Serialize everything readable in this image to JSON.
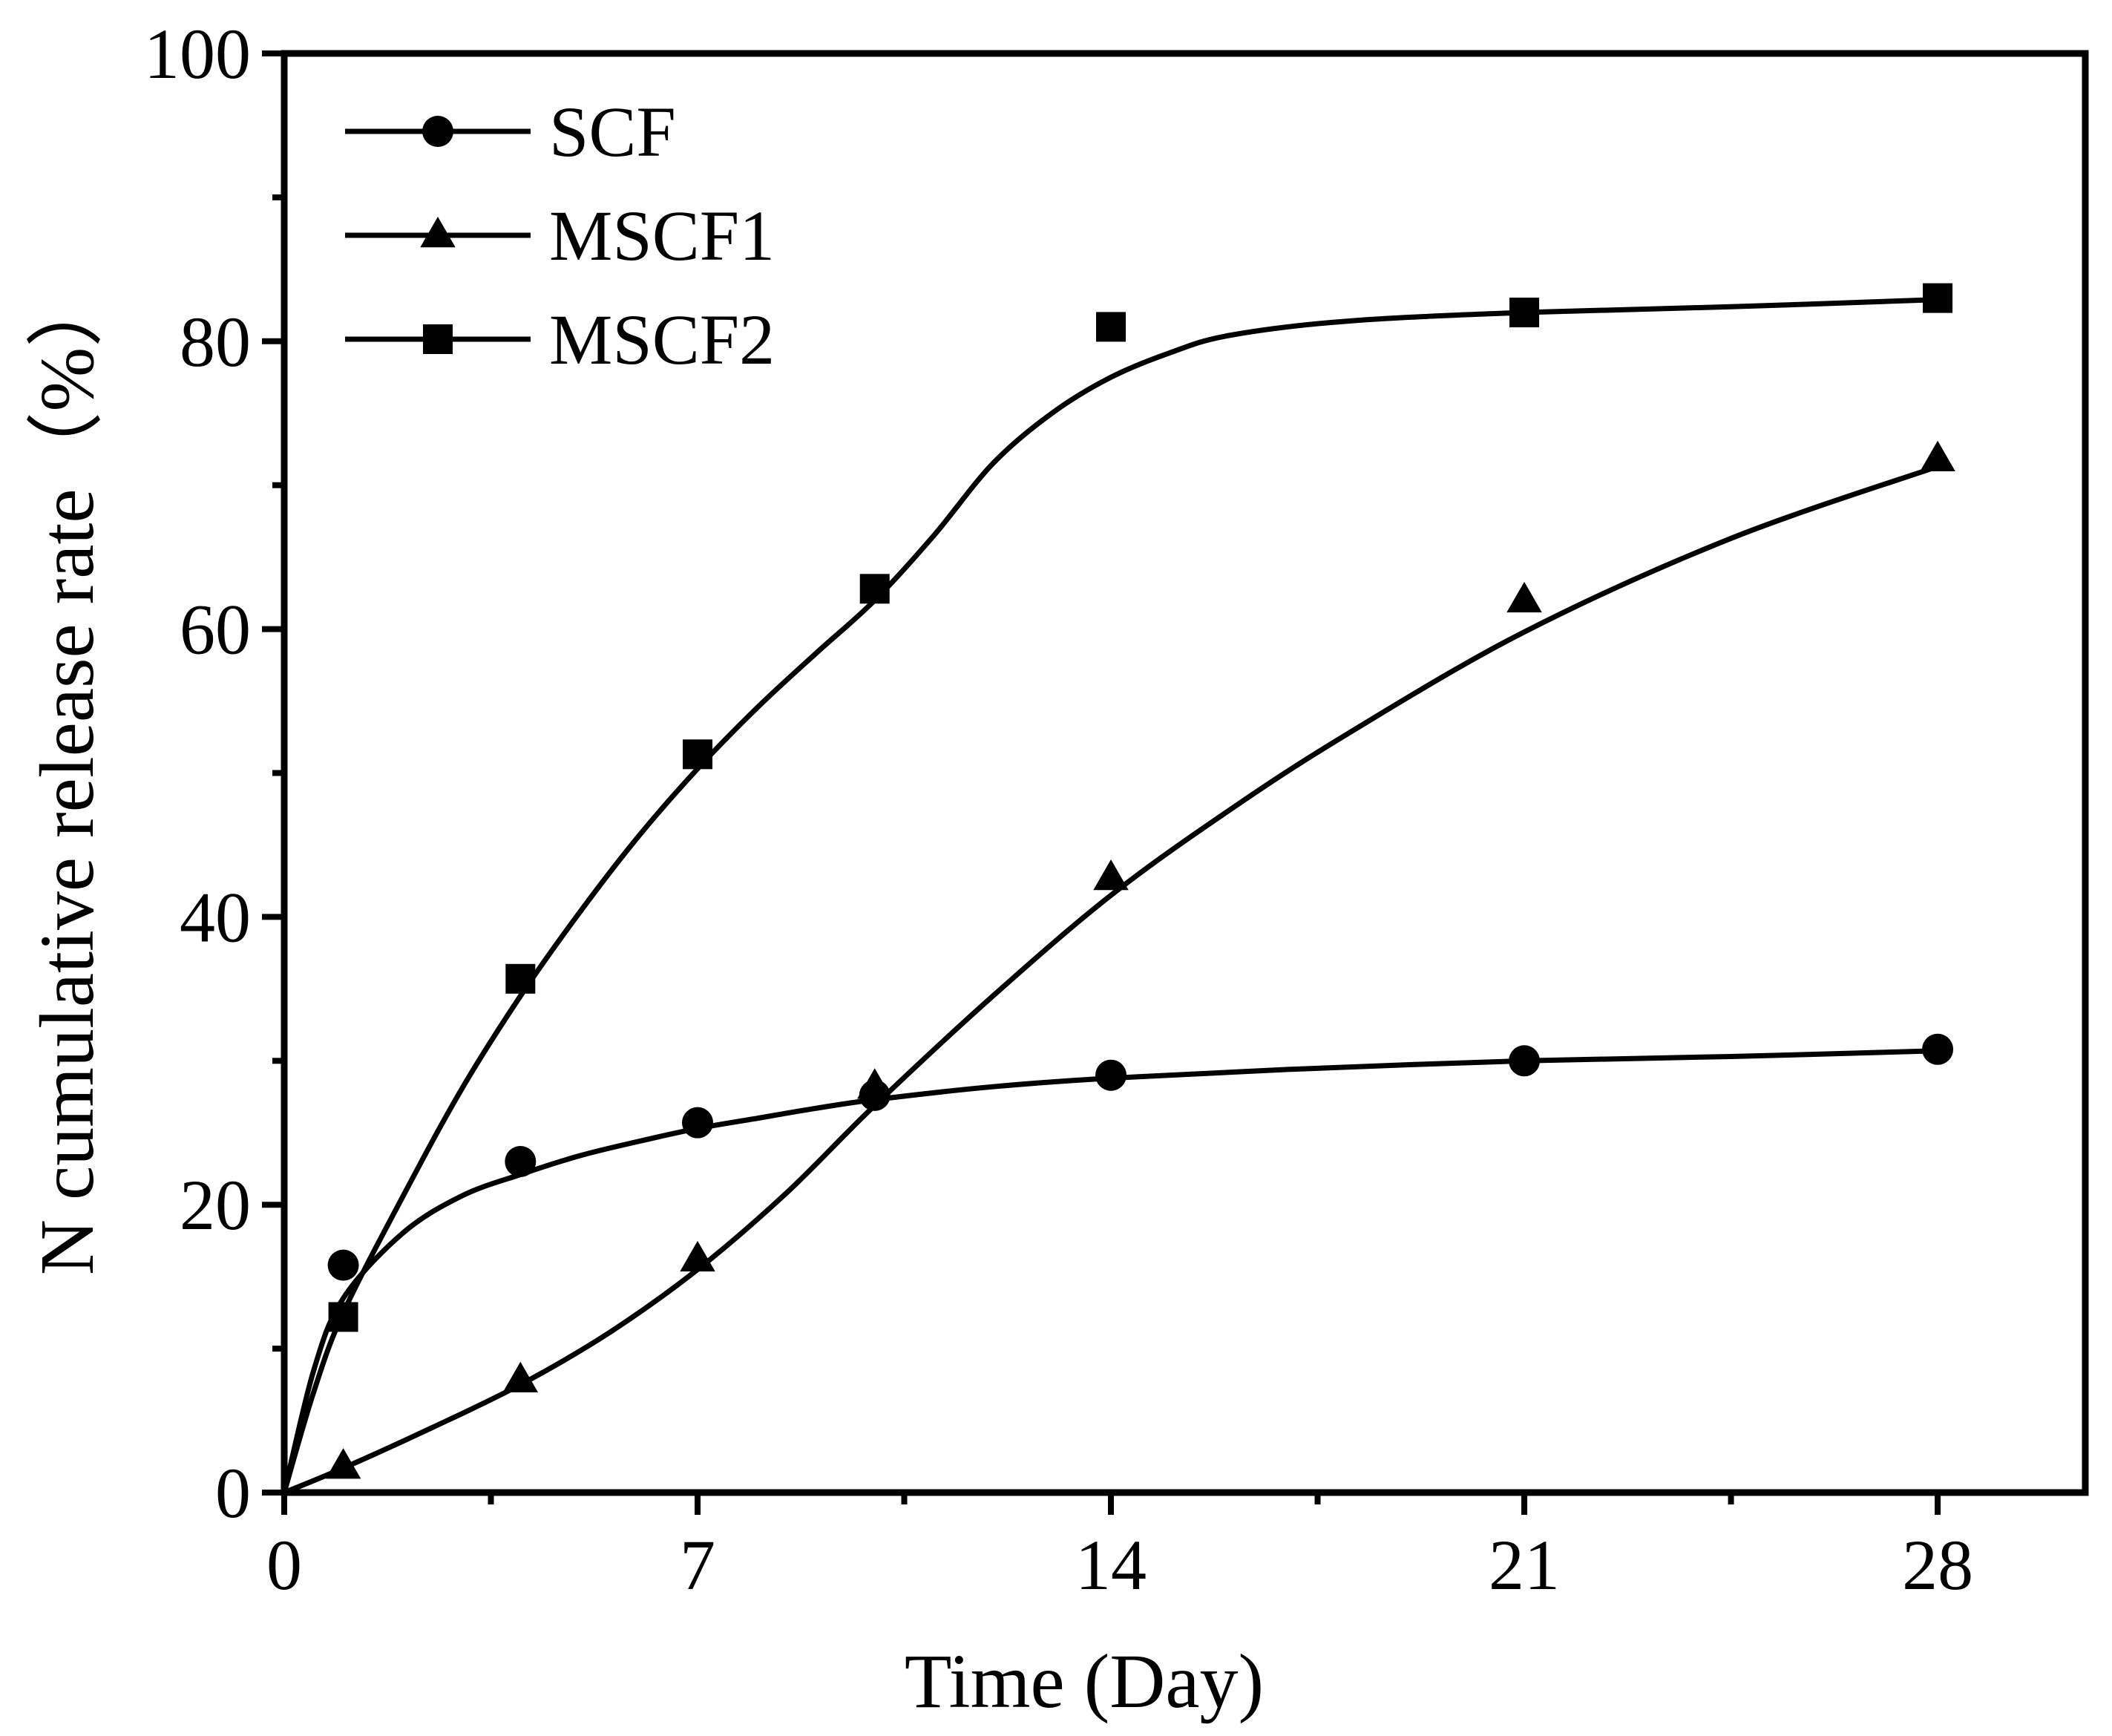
{
  "chart_data": {
    "type": "line",
    "title": "",
    "xlabel": "Time (Day)",
    "ylabel": "N cumulative release rate（%）",
    "xlim": [
      0,
      30.5
    ],
    "ylim": [
      0,
      100
    ],
    "xticks": [
      0,
      7,
      14,
      21,
      28
    ],
    "xminor_ticks": [
      3.5,
      10.5,
      17.5,
      24.5
    ],
    "yticks": [
      0,
      20,
      40,
      60,
      80,
      100
    ],
    "yminor_ticks": [
      10,
      30,
      50,
      70,
      90
    ],
    "legend_position": "top-left",
    "grid": false,
    "series": [
      {
        "name": "SCF",
        "marker": "circle",
        "x": [
          0,
          1,
          4,
          7,
          10,
          14,
          21,
          28
        ],
        "y": [
          0,
          15.8,
          23,
          25.7,
          27.6,
          29,
          30,
          30.8
        ],
        "fit": [
          [
            0,
            0
          ],
          [
            0.5,
            8.5
          ],
          [
            1,
            13.5
          ],
          [
            2,
            18
          ],
          [
            3,
            20.6
          ],
          [
            4,
            22.1
          ],
          [
            5,
            23.4
          ],
          [
            6,
            24.4
          ],
          [
            7,
            25.3
          ],
          [
            8,
            26
          ],
          [
            9,
            26.7
          ],
          [
            10,
            27.3
          ],
          [
            12,
            28.2
          ],
          [
            14,
            28.8
          ],
          [
            17,
            29.4
          ],
          [
            21,
            30
          ],
          [
            24.5,
            30.3
          ],
          [
            28,
            30.7
          ]
        ]
      },
      {
        "name": "MSCF1",
        "marker": "triangle",
        "x": [
          0,
          1,
          4,
          7,
          10,
          14,
          21,
          28
        ],
        "y": [
          0,
          1.8,
          7.8,
          16.2,
          28.2,
          42.7,
          62,
          71.8
        ],
        "fit": [
          [
            0,
            0
          ],
          [
            1,
            1.7
          ],
          [
            2.5,
            4.5
          ],
          [
            4,
            7.5
          ],
          [
            5.5,
            11.1
          ],
          [
            7,
            15.5
          ],
          [
            8.5,
            20.8
          ],
          [
            10,
            26.9
          ],
          [
            12,
            34.5
          ],
          [
            14,
            41.5
          ],
          [
            16,
            47.4
          ],
          [
            18,
            52.7
          ],
          [
            21,
            59.8
          ],
          [
            24.5,
            66.3
          ],
          [
            28,
            71.3
          ]
        ]
      },
      {
        "name": "MSCF2",
        "marker": "square",
        "x": [
          0,
          1,
          4,
          7,
          10,
          14,
          21,
          28
        ],
        "y": [
          0,
          12.2,
          35.7,
          51.3,
          62.8,
          81,
          82,
          83
        ],
        "fit": [
          [
            0,
            0
          ],
          [
            0.5,
            7
          ],
          [
            1,
            12.5
          ],
          [
            2,
            20.5
          ],
          [
            3,
            28
          ],
          [
            4,
            34.5
          ],
          [
            5,
            40.3
          ],
          [
            6,
            45.6
          ],
          [
            7,
            50.3
          ],
          [
            8,
            54.5
          ],
          [
            9,
            58.3
          ],
          [
            10,
            62
          ],
          [
            11,
            66.5
          ],
          [
            12,
            71.5
          ],
          [
            13,
            75
          ],
          [
            14,
            77.5
          ],
          [
            15,
            79.2
          ],
          [
            16,
            80.4
          ],
          [
            18,
            81.4
          ],
          [
            21,
            82
          ],
          [
            24.5,
            82.4
          ],
          [
            28,
            82.9
          ]
        ]
      }
    ]
  }
}
